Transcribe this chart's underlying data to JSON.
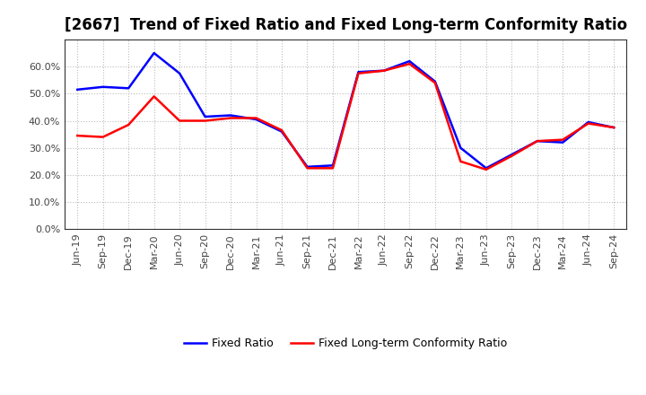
{
  "title": "[2667]  Trend of Fixed Ratio and Fixed Long-term Conformity Ratio",
  "x_labels": [
    "Jun-19",
    "Sep-19",
    "Dec-19",
    "Mar-20",
    "Jun-20",
    "Sep-20",
    "Dec-20",
    "Mar-21",
    "Jun-21",
    "Sep-21",
    "Dec-21",
    "Mar-22",
    "Jun-22",
    "Sep-22",
    "Dec-22",
    "Mar-23",
    "Jun-23",
    "Sep-23",
    "Dec-23",
    "Mar-24",
    "Jun-24",
    "Sep-24"
  ],
  "fixed_ratio": [
    51.5,
    52.5,
    52.0,
    65.0,
    57.5,
    41.5,
    42.0,
    40.5,
    36.0,
    23.0,
    23.5,
    58.0,
    58.5,
    62.0,
    54.5,
    30.0,
    22.5,
    27.5,
    32.5,
    32.0,
    39.5,
    37.5
  ],
  "fixed_lt_ratio": [
    34.5,
    34.0,
    38.5,
    49.0,
    40.0,
    40.0,
    41.0,
    41.0,
    36.5,
    22.5,
    22.5,
    57.5,
    58.5,
    61.0,
    54.0,
    25.0,
    22.0,
    27.0,
    32.5,
    33.0,
    39.0,
    37.5
  ],
  "fixed_ratio_color": "#0000FF",
  "fixed_lt_ratio_color": "#FF0000",
  "ylim": [
    0,
    70
  ],
  "yticks": [
    0,
    10,
    20,
    30,
    40,
    50,
    60
  ],
  "grid_color": "#aaaaaa",
  "bg_color": "#ffffff",
  "plot_bg_color": "#ffffff",
  "legend_fixed_ratio": "Fixed Ratio",
  "legend_fixed_lt_ratio": "Fixed Long-term Conformity Ratio",
  "title_fontsize": 12,
  "tick_fontsize": 8,
  "legend_fontsize": 9,
  "linewidth": 1.8
}
